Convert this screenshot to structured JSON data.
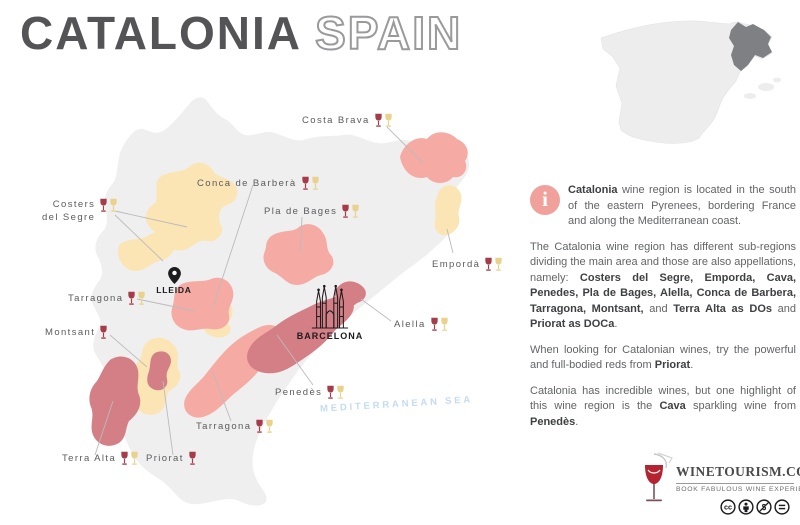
{
  "title": {
    "main": "CATALONIA",
    "sub": "SPAIN"
  },
  "inset": {
    "name": "spain-locator",
    "highlight_region": "Catalonia",
    "highlight_color": "#7e8083",
    "base_color": "#ededee"
  },
  "map": {
    "sea_label": "MEDITERRANEAN SEA",
    "cities": [
      {
        "name": "LLEIDA"
      },
      {
        "name": "BARCELONA"
      }
    ],
    "labels": [
      {
        "id": "costa-brava",
        "text": "Costa Brava",
        "glasses": [
          "red",
          "yellow"
        ]
      },
      {
        "id": "conca-de-barbera",
        "text": "Conca de Barberà",
        "glasses": [
          "red",
          "yellow"
        ]
      },
      {
        "id": "pla-de-bages",
        "text": "Pla de Bages",
        "glasses": [
          "red",
          "yellow"
        ]
      },
      {
        "id": "costers-del-segre",
        "text": "Costers del Segre",
        "lines": [
          "Costers",
          "del Segre"
        ],
        "glasses": [
          "red",
          "yellow"
        ]
      },
      {
        "id": "emporda",
        "text": "Empordà",
        "glasses": [
          "red",
          "yellow"
        ]
      },
      {
        "id": "tarragona-west",
        "text": "Tarragona",
        "glasses": [
          "red",
          "yellow"
        ]
      },
      {
        "id": "montsant",
        "text": "Montsant",
        "glasses": [
          "red"
        ]
      },
      {
        "id": "alella",
        "text": "Alella",
        "glasses": [
          "red",
          "yellow"
        ]
      },
      {
        "id": "penedes",
        "text": "Penedès",
        "glasses": [
          "red",
          "yellow"
        ]
      },
      {
        "id": "tarragona-south",
        "text": "Tarragona",
        "glasses": [
          "red",
          "yellow"
        ]
      },
      {
        "id": "terra-alta",
        "text": "Terra Alta",
        "glasses": [
          "red",
          "yellow"
        ]
      },
      {
        "id": "priorat",
        "text": "Priorat",
        "glasses": [
          "red"
        ]
      }
    ],
    "colors": {
      "base_gray": "#efefef",
      "region_pink": "#f5aba3",
      "region_rose": "#d47f85",
      "region_yellow": "#fbe5b4",
      "leader_line": "#bbbbbb"
    }
  },
  "info_panel": {
    "icon": "i",
    "p1": [
      {
        "t": "Catalonia",
        "b": true
      },
      {
        "t": " wine region is located in the south of the eastern Pyrenees, bordering France and along the Mediterranean coast.",
        "b": false
      }
    ],
    "p2": [
      {
        "t": "The Catalonia wine region has different sub-regions dividing the main area and those are also appellations, namely: ",
        "b": false
      },
      {
        "t": "Costers del Segre, Emporda, Cava, Penedes, Pla de Bages, Alella, Conca de Barbera, Tarragona, Montsant,",
        "b": true
      },
      {
        "t": " and ",
        "b": false
      },
      {
        "t": "Terra Alta as DOs",
        "b": true
      },
      {
        "t": " and ",
        "b": false
      },
      {
        "t": "Priorat as DOCa",
        "b": true
      },
      {
        "t": ".",
        "b": false
      }
    ],
    "p3": [
      {
        "t": "When looking for Catalonian wines, try the powerful and full-bodied reds from ",
        "b": false
      },
      {
        "t": "Priorat",
        "b": true
      },
      {
        "t": ".",
        "b": false
      }
    ],
    "p4": [
      {
        "t": "Catalonia has incredible wines, but one highlight of this wine region is the ",
        "b": false
      },
      {
        "t": "Cava",
        "b": true
      },
      {
        "t": " sparkling wine from ",
        "b": false
      },
      {
        "t": "Penedès",
        "b": true
      },
      {
        "t": ".",
        "b": false
      }
    ]
  },
  "logo": {
    "brand": "WINETOURISM.COM",
    "tagline": "BOOK FABULOUS WINE EXPERIENCES",
    "license_icons": [
      "cc",
      "by",
      "nc",
      "nd"
    ],
    "glass_color": "#b4232f"
  }
}
